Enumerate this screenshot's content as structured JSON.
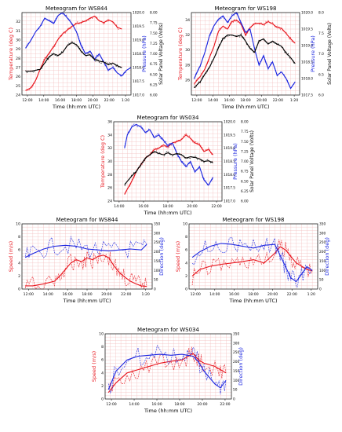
{
  "chart_data": [
    {
      "type": "line",
      "title": "Meteogram for WS844",
      "xlabel": "Time (hh:mm UTC)",
      "ylabel": "Temperature (deg C)",
      "ylabel2": "Pressure (hPa)",
      "ylabel3": "Solar Panel Voltage (Volts)",
      "xticks": [
        "12:00",
        "14:00",
        "16:00",
        "18:00",
        "20:00",
        "22:00",
        "1:20"
      ],
      "xlim": [
        12,
        24
      ],
      "ylim": [
        24,
        33
      ],
      "yticks": [
        24,
        25,
        26,
        27,
        28,
        29,
        30,
        31,
        32
      ],
      "ylim2": [
        1017.0,
        1020.0
      ],
      "yticks2": [
        "1017.0",
        "1017.5",
        "1018.0",
        "1018.5",
        "1019.0",
        "1019.5",
        "1020.0"
      ],
      "ylim3": [
        6.0,
        8.0
      ],
      "yticks3": [
        "6.00",
        "6.25",
        "6.50",
        "6.75",
        "7.00",
        "7.25",
        "7.50",
        "7.75",
        "8.00"
      ],
      "series": [
        {
          "axis": "left",
          "color": "#e8141c",
          "x": [
            12.4,
            13,
            13.5,
            14,
            14.5,
            15,
            15.5,
            16,
            16.5,
            17,
            17.5,
            18,
            18.5,
            19,
            19.5,
            20,
            20.5,
            21,
            21.5,
            22,
            22.5,
            23
          ],
          "values": [
            24.5,
            24.8,
            25.6,
            26.8,
            27.9,
            28.6,
            29.3,
            30.1,
            30.7,
            31.1,
            31.5,
            31.8,
            31.9,
            32.1,
            32.4,
            32.6,
            32.1,
            31.9,
            32.2,
            32.0,
            31.4,
            31.2
          ]
        },
        {
          "axis": "right1",
          "color": "#1a24e0",
          "x": [
            12.4,
            13,
            13.5,
            14,
            14.5,
            15,
            15.5,
            16,
            16.5,
            17,
            17.5,
            18,
            18.5,
            19,
            19.5,
            20,
            20.5,
            21,
            21.5,
            22,
            22.5,
            23,
            23.5,
            24
          ],
          "values": [
            1018.7,
            1019.0,
            1019.3,
            1019.5,
            1019.8,
            1019.7,
            1019.6,
            1019.9,
            1020.0,
            1019.8,
            1019.6,
            1019.3,
            1018.8,
            1018.5,
            1018.6,
            1018.3,
            1018.5,
            1018.2,
            1017.9,
            1018.0,
            1017.8,
            1017.7,
            1017.9,
            1018.0
          ]
        },
        {
          "axis": "right2",
          "color": "#000000",
          "x": [
            12.4,
            13,
            14,
            14.5,
            15,
            15.5,
            16,
            16.5,
            17,
            17.5,
            18,
            18.5,
            19,
            19.5,
            20,
            20.5,
            21,
            21.5,
            22,
            22.5,
            23
          ],
          "values": [
            26.6,
            26.6,
            26.8,
            27.5,
            28.2,
            28.5,
            28.3,
            28.7,
            29.4,
            29.7,
            29.5,
            28.8,
            28.3,
            28.4,
            27.9,
            27.7,
            27.6,
            27.3,
            27.5,
            27.2,
            27.0
          ]
        }
      ]
    },
    {
      "type": "line",
      "title": "Meteogram for WS198",
      "xlabel": "Time (hh:mm UTC)",
      "ylabel": "Temperature (deg C)",
      "ylabel2": "Pressure (hPa)",
      "ylabel3": "Solar Panel Voltage (Volts)",
      "xticks": [
        "12:00",
        "14:00",
        "16:00",
        "18:00",
        "20:00",
        "22:00",
        "1:20"
      ],
      "xlim": [
        12,
        24
      ],
      "ylim": [
        24,
        35
      ],
      "yticks": [
        26,
        28,
        30,
        32,
        34
      ],
      "ylim2": [
        1017.5,
        1020.0
      ],
      "yticks2": [
        "1017.5",
        "1018.0",
        "1018.5",
        "1019.0",
        "1019.5",
        "1020.0"
      ],
      "ylim3": [
        6.0,
        8.0
      ],
      "yticks3": [
        "6.0",
        "6.5",
        "7.0",
        "7.5",
        "8.0"
      ],
      "series": [
        {
          "axis": "left",
          "color": "#e8141c",
          "x": [
            12.3,
            13,
            13.5,
            14,
            14.5,
            15,
            15.5,
            16,
            16.5,
            17,
            17.5,
            18,
            18.5,
            19,
            19.5,
            20,
            20.5,
            21,
            21.5,
            22,
            22.5,
            23,
            23.5
          ],
          "values": [
            25.5,
            26.5,
            27.5,
            29.0,
            30.5,
            32.5,
            33.2,
            32.8,
            33.8,
            34.0,
            33.5,
            32.0,
            33.0,
            33.5,
            33.6,
            33.4,
            33.8,
            33.5,
            33.0,
            32.9,
            32.2,
            31.5,
            30.9
          ]
        },
        {
          "axis": "right1",
          "color": "#1a24e0",
          "x": [
            12.3,
            13,
            13.5,
            14,
            14.5,
            15,
            15.5,
            16,
            16.5,
            17,
            17.5,
            18,
            18.5,
            19,
            19.5,
            20,
            20.5,
            21,
            21.5,
            22,
            22.5,
            23,
            23.5
          ],
          "values": [
            1018.0,
            1018.4,
            1018.8,
            1019.3,
            1019.6,
            1019.8,
            1019.9,
            1019.7,
            1019.9,
            1020.0,
            1019.7,
            1019.4,
            1019.5,
            1018.9,
            1018.4,
            1018.7,
            1018.3,
            1018.5,
            1018.1,
            1018.2,
            1018.0,
            1017.7,
            1017.9
          ]
        },
        {
          "axis": "right2",
          "color": "#000000",
          "x": [
            12.3,
            13,
            13.5,
            14,
            14.5,
            15,
            15.5,
            16,
            16.5,
            17,
            17.5,
            18,
            18.5,
            19,
            19.5,
            20,
            20.5,
            21,
            21.5,
            22,
            22.5,
            23,
            23.5
          ],
          "values": [
            25.0,
            25.8,
            26.8,
            27.7,
            28.9,
            30.3,
            31.5,
            32.0,
            32.0,
            31.8,
            32.0,
            31.2,
            30.2,
            29.7,
            31.2,
            31.5,
            30.8,
            31.2,
            30.8,
            30.5,
            29.6,
            29.0,
            28.2
          ]
        }
      ]
    },
    {
      "type": "line",
      "title": "Meteogram for WS034",
      "xlabel": "Time (hh:mm UTC)",
      "ylabel": "Temperature (deg C)",
      "ylabel2": "Pressure (hPa)",
      "ylabel3": "Solar Panel Voltage (Volts)",
      "xticks": [
        "14:00",
        "16:00",
        "18:00",
        "20:00",
        "22:00"
      ],
      "xlim": [
        12,
        24
      ],
      "ylim": [
        24,
        36
      ],
      "yticks": [
        24,
        26,
        28,
        30,
        32,
        34,
        36
      ],
      "ylim2": [
        1017.0,
        1020.0
      ],
      "yticks2": [
        "1017.0",
        "1017.5",
        "1018.0",
        "1018.5",
        "1019.0",
        "1019.5",
        "1020.0"
      ],
      "ylim3": [
        6.0,
        8.0
      ],
      "yticks3": [
        "6.00",
        "6.25",
        "6.50",
        "6.75",
        "7.00",
        "7.25",
        "7.50",
        "7.75",
        "8.00"
      ],
      "series": [
        {
          "axis": "left",
          "color": "#e8141c",
          "x": [
            13.2,
            13.5,
            14,
            14.5,
            15,
            15.5,
            16,
            16.5,
            17,
            17.5,
            18,
            18.5,
            19,
            19.5,
            20,
            20.5,
            21,
            21.5,
            22,
            22.5,
            23
          ],
          "values": [
            25.0,
            25.8,
            27.0,
            28.5,
            29.5,
            30.5,
            31.0,
            31.8,
            32.0,
            32.5,
            32.2,
            32.8,
            33.0,
            33.3,
            34.0,
            33.5,
            32.8,
            32.5,
            31.5,
            31.8,
            31.0
          ]
        },
        {
          "axis": "right1",
          "color": "#1a24e0",
          "x": [
            13.2,
            13.5,
            14,
            14.5,
            15,
            15.5,
            16,
            16.5,
            17,
            17.5,
            18,
            18.5,
            19,
            19.5,
            20,
            20.5,
            21,
            21.5,
            22,
            22.5,
            23
          ],
          "values": [
            1019.0,
            1019.5,
            1019.8,
            1019.9,
            1019.8,
            1019.6,
            1019.7,
            1019.4,
            1019.5,
            1019.3,
            1019.1,
            1019.2,
            1018.8,
            1018.5,
            1018.3,
            1018.5,
            1018.1,
            1018.3,
            1017.8,
            1017.6,
            1017.9
          ]
        },
        {
          "axis": "right2",
          "color": "#000000",
          "x": [
            13.2,
            13.5,
            14,
            14.5,
            15,
            15.5,
            16,
            16.5,
            17,
            17.5,
            18,
            18.5,
            19,
            19.5,
            20,
            20.5,
            21,
            21.5,
            22,
            22.5,
            23
          ],
          "values": [
            26.5,
            27.0,
            27.8,
            28.5,
            29.5,
            30.5,
            31.0,
            31.5,
            31.2,
            31.0,
            31.3,
            31.0,
            31.2,
            31.0,
            30.5,
            30.7,
            30.6,
            30.4,
            30.0,
            30.1,
            29.8
          ]
        }
      ]
    },
    {
      "type": "line",
      "title": "Meteogram for WS844",
      "xlabel": "Time (hh:mm UTC)",
      "ylabel": "Speed (m/s)",
      "ylabel2": "Direction (deg)",
      "xticks": [
        "12:00",
        "14:00",
        "16:00",
        "18:00",
        "20:00",
        "22:00",
        "1:20"
      ],
      "xlim": [
        12,
        24
      ],
      "ylim": [
        0,
        10
      ],
      "yticks": [
        0,
        2,
        4,
        6,
        8,
        10
      ],
      "ylim2": [
        0,
        350
      ],
      "yticks2": [
        0,
        50,
        100,
        150,
        200,
        250,
        300,
        350
      ],
      "series": [
        {
          "axis": "left",
          "color": "#e8141c",
          "x": [
            12.3,
            13,
            14,
            15,
            15.5,
            16,
            16.5,
            17,
            17.5,
            18,
            18.5,
            19,
            19.5,
            20,
            20.5,
            21,
            21.5,
            22,
            22.5,
            23,
            23.5
          ],
          "values": [
            0.5,
            0.5,
            0.8,
            1.2,
            2.0,
            3.0,
            4.0,
            4.5,
            4.2,
            4.8,
            4.5,
            5.0,
            5.2,
            4.8,
            3.5,
            2.5,
            1.8,
            1.2,
            0.8,
            0.5,
            0.4
          ]
        },
        {
          "axis": "right1",
          "color": "#1a24e0",
          "x": [
            12.3,
            13,
            14,
            15,
            16,
            17,
            18,
            19,
            20,
            21,
            22,
            23,
            23.5
          ],
          "values": [
            170,
            190,
            215,
            230,
            235,
            230,
            215,
            210,
            205,
            210,
            215,
            210,
            240
          ]
        }
      ]
    },
    {
      "type": "line",
      "title": "Meteogram for WS198",
      "xlabel": "Time (hh:mm UTC)",
      "ylabel": "Speed (m/s)",
      "ylabel2": "Direction (deg)",
      "xticks": [
        "12:00",
        "14:00",
        "16:00",
        "18:00",
        "20:00",
        "22:00",
        "1:20"
      ],
      "xlim": [
        12,
        24
      ],
      "ylim": [
        0,
        10
      ],
      "yticks": [
        0,
        2,
        4,
        6,
        8,
        10
      ],
      "ylim2": [
        0,
        350
      ],
      "yticks2": [
        0,
        50,
        100,
        150,
        200,
        250,
        300,
        350
      ],
      "series": [
        {
          "axis": "left",
          "color": "#e8141c",
          "x": [
            12.3,
            13,
            14,
            15,
            16,
            17,
            18,
            19,
            20,
            20.5,
            21,
            21.5,
            22,
            22.5,
            23,
            23.5
          ],
          "values": [
            2.0,
            3.0,
            3.5,
            3.8,
            4.0,
            4.2,
            4.5,
            4.0,
            5.5,
            6.5,
            6.0,
            5.0,
            4.0,
            3.5,
            3.0,
            2.8
          ]
        },
        {
          "axis": "right1",
          "color": "#1a24e0",
          "x": [
            12.3,
            13,
            14,
            15,
            16,
            17,
            18,
            19,
            20,
            20.5,
            21,
            21.5,
            22,
            22.5,
            23,
            23.5
          ],
          "values": [
            170,
            200,
            230,
            245,
            240,
            230,
            220,
            235,
            240,
            180,
            120,
            60,
            40,
            80,
            120,
            100
          ]
        }
      ]
    },
    {
      "type": "line",
      "title": "Meteogram for WS034",
      "xlabel": "Time (hh:mm UTC)",
      "ylabel": "Speed (m/s)",
      "ylabel2": "Direction (deg)",
      "xticks": [
        "12:00",
        "14:00",
        "16:00",
        "18:00",
        "20:00",
        "22:00"
      ],
      "xlim": [
        12,
        23.5
      ],
      "ylim": [
        0,
        10
      ],
      "yticks": [
        0,
        2,
        4,
        6,
        8,
        10
      ],
      "ylim2": [
        0,
        350
      ],
      "yticks2": [
        0,
        50,
        100,
        150,
        200,
        250,
        300,
        350
      ],
      "series": [
        {
          "axis": "left",
          "color": "#e8141c",
          "x": [
            12.3,
            13,
            14,
            15,
            16,
            17,
            18,
            19,
            19.5,
            20,
            20.5,
            21,
            22,
            22.5,
            23
          ],
          "values": [
            1.0,
            2.5,
            4.0,
            4.5,
            5.0,
            5.5,
            5.8,
            6.0,
            6.5,
            7.0,
            6.0,
            5.5,
            5.0,
            4.5,
            4.0
          ]
        },
        {
          "axis": "right1",
          "color": "#1a24e0",
          "x": [
            12.3,
            13,
            14,
            15,
            16,
            17,
            18,
            19,
            19.5,
            20,
            20.5,
            21,
            22,
            22.5,
            23
          ],
          "values": [
            50,
            150,
            210,
            230,
            235,
            240,
            235,
            240,
            235,
            230,
            200,
            150,
            80,
            60,
            100
          ]
        }
      ]
    }
  ]
}
